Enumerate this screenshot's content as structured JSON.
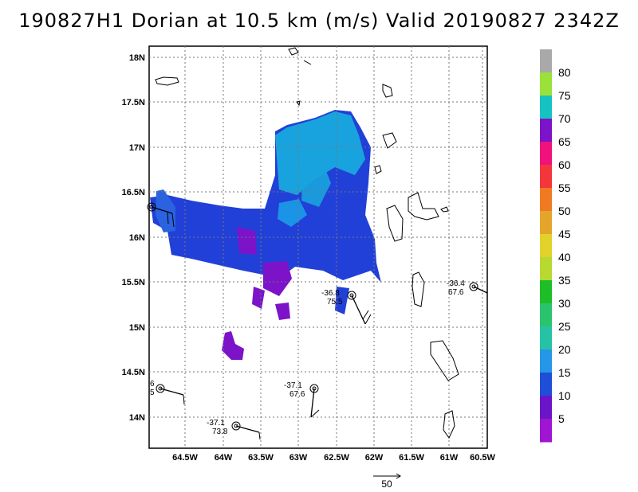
{
  "title": "190827H1 Dorian at 10.5 km (m/s) Valid 20190827 2342Z",
  "map": {
    "lat_ticks": [
      "18N",
      "17.5N",
      "17N",
      "16.5N",
      "16N",
      "15.5N",
      "15N",
      "14.5N",
      "14N"
    ],
    "lon_ticks": [
      "64.5W",
      "64W",
      "63.5W",
      "63W",
      "62.5W",
      "62W",
      "61.5W",
      "61W",
      "60.5W"
    ]
  },
  "colorbar": {
    "labels": [
      "80",
      "75",
      "70",
      "65",
      "60",
      "55",
      "50",
      "45",
      "40",
      "35",
      "30",
      "25",
      "20",
      "15",
      "10",
      "5"
    ],
    "colors": [
      "#a9a9a9",
      "#9ae13a",
      "#17c2c2",
      "#7d13c9",
      "#f0127a",
      "#f2363a",
      "#f07a22",
      "#e3a62a",
      "#e2d12a",
      "#b8d832",
      "#1ebe28",
      "#2ac46e",
      "#26c2a5",
      "#2596e8",
      "#1f4ed9",
      "#6a16c8",
      "#a015d2"
    ]
  },
  "observations": [
    {
      "top": "-36.8",
      "bottom": "75.5"
    },
    {
      "top": "-36.4",
      "bottom": "67.6"
    },
    {
      "top": "-37.1",
      "bottom": "67.6"
    },
    {
      "top": "-37.1",
      "bottom": "73.8"
    },
    {
      "top": "6",
      "bottom": "5"
    }
  ],
  "reference_vector": {
    "label": "50"
  }
}
